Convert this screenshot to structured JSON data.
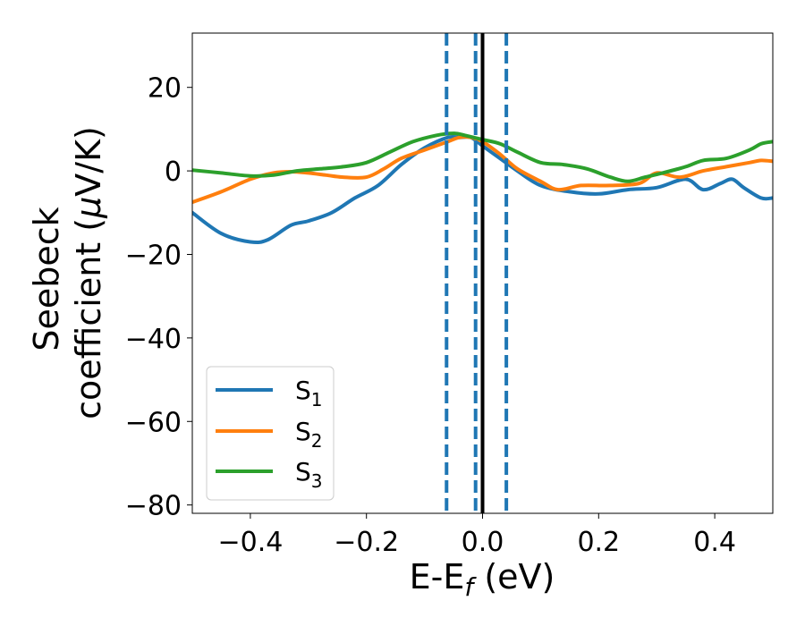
{
  "chart_data": {
    "type": "line",
    "xlabel": "E-E",
    "xlabel_sub": "f",
    "xlabel_unit": " (eV)",
    "ylabel_line1": "Seebeck",
    "ylabel_line2_pre": "coefficient  (",
    "ylabel_mu": "μ",
    "ylabel_line2_post": "V/K)",
    "xlim": [
      -0.5,
      0.5
    ],
    "ylim": [
      -82,
      33
    ],
    "xticks": [
      -0.4,
      -0.2,
      0.0,
      0.2,
      0.4
    ],
    "xtick_labels": [
      "−0.4",
      "−0.2",
      "0.0",
      "0.2",
      "0.4"
    ],
    "yticks": [
      20,
      0,
      -20,
      -40,
      -60,
      -80
    ],
    "ytick_labels": [
      "20",
      "0",
      "−20",
      "−40",
      "−60",
      "−80"
    ],
    "legend_position": "lower-left",
    "vlines": [
      {
        "x": -0.062,
        "style": "dashed",
        "color": "#1f77b4"
      },
      {
        "x": -0.012,
        "style": "dashed",
        "color": "#1f77b4"
      },
      {
        "x": 0.0,
        "style": "solid",
        "color": "#000000"
      },
      {
        "x": 0.041,
        "style": "dashed",
        "color": "#1f77b4"
      }
    ],
    "series": [
      {
        "name": "S",
        "sub": "1",
        "color": "#1f77b4",
        "x": [
          -0.5,
          -0.45,
          -0.4,
          -0.37,
          -0.33,
          -0.3,
          -0.26,
          -0.22,
          -0.18,
          -0.14,
          -0.1,
          -0.06,
          -0.04,
          -0.02,
          0.0,
          0.03,
          0.06,
          0.1,
          0.15,
          0.2,
          0.25,
          0.3,
          0.35,
          0.38,
          0.41,
          0.43,
          0.45,
          0.48,
          0.5
        ],
        "y": [
          -10,
          -15,
          -17,
          -16.5,
          -13,
          -12,
          -10,
          -6.5,
          -3.5,
          1.5,
          5.5,
          8,
          8,
          8,
          6,
          3,
          0,
          -3.5,
          -5,
          -5.5,
          -4.5,
          -4,
          -2,
          -4.5,
          -3,
          -2,
          -4,
          -6.5,
          -6.5
        ]
      },
      {
        "name": "S",
        "sub": "2",
        "color": "#ff7f0e",
        "x": [
          -0.5,
          -0.45,
          -0.4,
          -0.36,
          -0.33,
          -0.3,
          -0.27,
          -0.24,
          -0.2,
          -0.17,
          -0.14,
          -0.1,
          -0.06,
          -0.04,
          -0.02,
          0.0,
          0.03,
          0.06,
          0.1,
          0.13,
          0.17,
          0.22,
          0.27,
          0.3,
          0.34,
          0.38,
          0.42,
          0.46,
          0.48,
          0.5
        ],
        "y": [
          -7.5,
          -5,
          -2,
          -0.5,
          -0.2,
          -0.5,
          -1,
          -1.5,
          -1.5,
          0.5,
          3,
          5,
          7,
          8,
          8,
          7,
          4,
          0.5,
          -2.5,
          -4.5,
          -3.5,
          -3.5,
          -3,
          -0.5,
          -1.5,
          0,
          1,
          2,
          2.5,
          2.3
        ]
      },
      {
        "name": "S",
        "sub": "3",
        "color": "#2ca02c",
        "x": [
          -0.5,
          -0.45,
          -0.4,
          -0.36,
          -0.32,
          -0.28,
          -0.24,
          -0.2,
          -0.16,
          -0.12,
          -0.08,
          -0.05,
          -0.03,
          0.0,
          0.03,
          0.06,
          0.1,
          0.14,
          0.18,
          0.22,
          0.25,
          0.28,
          0.31,
          0.35,
          0.38,
          0.42,
          0.46,
          0.48,
          0.5
        ],
        "y": [
          0.2,
          -0.5,
          -1.2,
          -1,
          0,
          0.5,
          1,
          2,
          4.5,
          7,
          8.5,
          9,
          8.5,
          7.5,
          6.5,
          4.5,
          2,
          1.5,
          0.5,
          -1.5,
          -2.5,
          -1.5,
          -0.5,
          1,
          2.5,
          3,
          5,
          6.5,
          7
        ]
      }
    ]
  }
}
